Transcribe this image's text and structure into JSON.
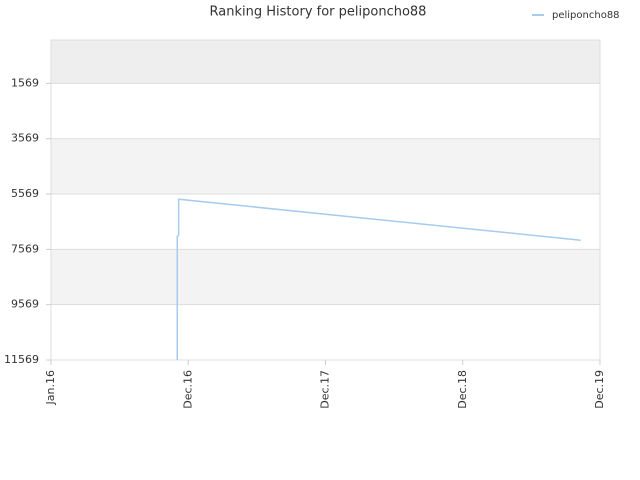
{
  "chart_data": {
    "type": "line",
    "title": "Ranking History for peliponcho88",
    "x": [
      0.92,
      0.92,
      0.93,
      0.93,
      3.86
    ],
    "series": [
      {
        "name": "peliponcho88",
        "color": "#a6cbee",
        "values": [
          11569,
          7100,
          7050,
          5758,
          7238
        ]
      }
    ],
    "xlim": [
      0,
      4
    ],
    "xticks": [
      {
        "value": 0,
        "label": "Jan.16"
      },
      {
        "value": 1,
        "label": "Dec.16"
      },
      {
        "value": 2,
        "label": "Dec.17"
      },
      {
        "value": 3,
        "label": "Dec.18"
      },
      {
        "value": 4,
        "label": "Dec.19"
      }
    ],
    "ylim": [
      11569,
      0
    ],
    "yticks": [
      1569,
      3569,
      5569,
      7569,
      9569,
      11569
    ],
    "inverted_y": true,
    "grid": true,
    "legend": "top-right"
  }
}
